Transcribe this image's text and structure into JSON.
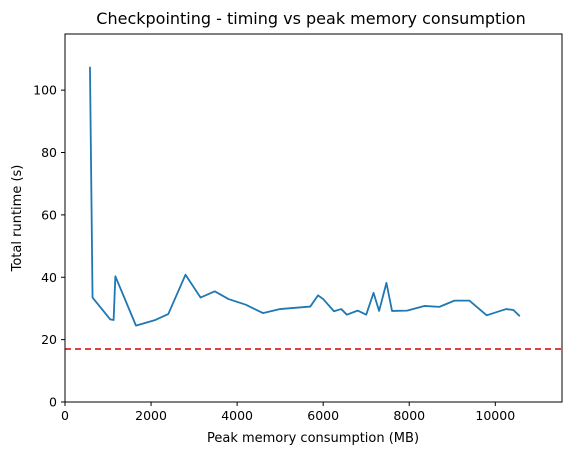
{
  "chart_data": {
    "type": "line",
    "title": "Checkpointing - timing vs peak memory consumption",
    "xlabel": "Peak memory consumption (MB)",
    "ylabel": "Total runtime (s)",
    "xlim": [
      0,
      11550
    ],
    "ylim": [
      0,
      118
    ],
    "xticks": [
      0,
      2000,
      4000,
      6000,
      8000,
      10000
    ],
    "yticks": [
      0,
      20,
      40,
      60,
      80,
      100
    ],
    "grid": false,
    "colors": {
      "series": "#1f77b4",
      "reference": "#d62728"
    },
    "series": [
      {
        "x": [
          580,
          640,
          1050,
          1130,
          1170,
          1650,
          2100,
          2400,
          2800,
          3150,
          3480,
          3800,
          4200,
          4600,
          5000,
          5700,
          5880,
          6000,
          6250,
          6420,
          6550,
          6800,
          7000,
          7170,
          7300,
          7470,
          7600,
          7950,
          8350,
          8700,
          9050,
          9400,
          9800,
          10250,
          10420,
          10570
        ],
        "y": [
          107.5,
          33.5,
          26.5,
          26.3,
          40.3,
          24.5,
          26.3,
          28.2,
          40.8,
          33.5,
          35.5,
          33,
          31.2,
          28.5,
          29.8,
          30.6,
          34.2,
          33,
          29.1,
          29.8,
          28,
          29.3,
          28,
          35,
          29.2,
          38.2,
          29.2,
          29.3,
          30.8,
          30.5,
          32.5,
          32.5,
          27.8,
          29.8,
          29.5,
          27.5
        ]
      }
    ],
    "reference_line": {
      "y": 17,
      "style": "dashed"
    }
  }
}
